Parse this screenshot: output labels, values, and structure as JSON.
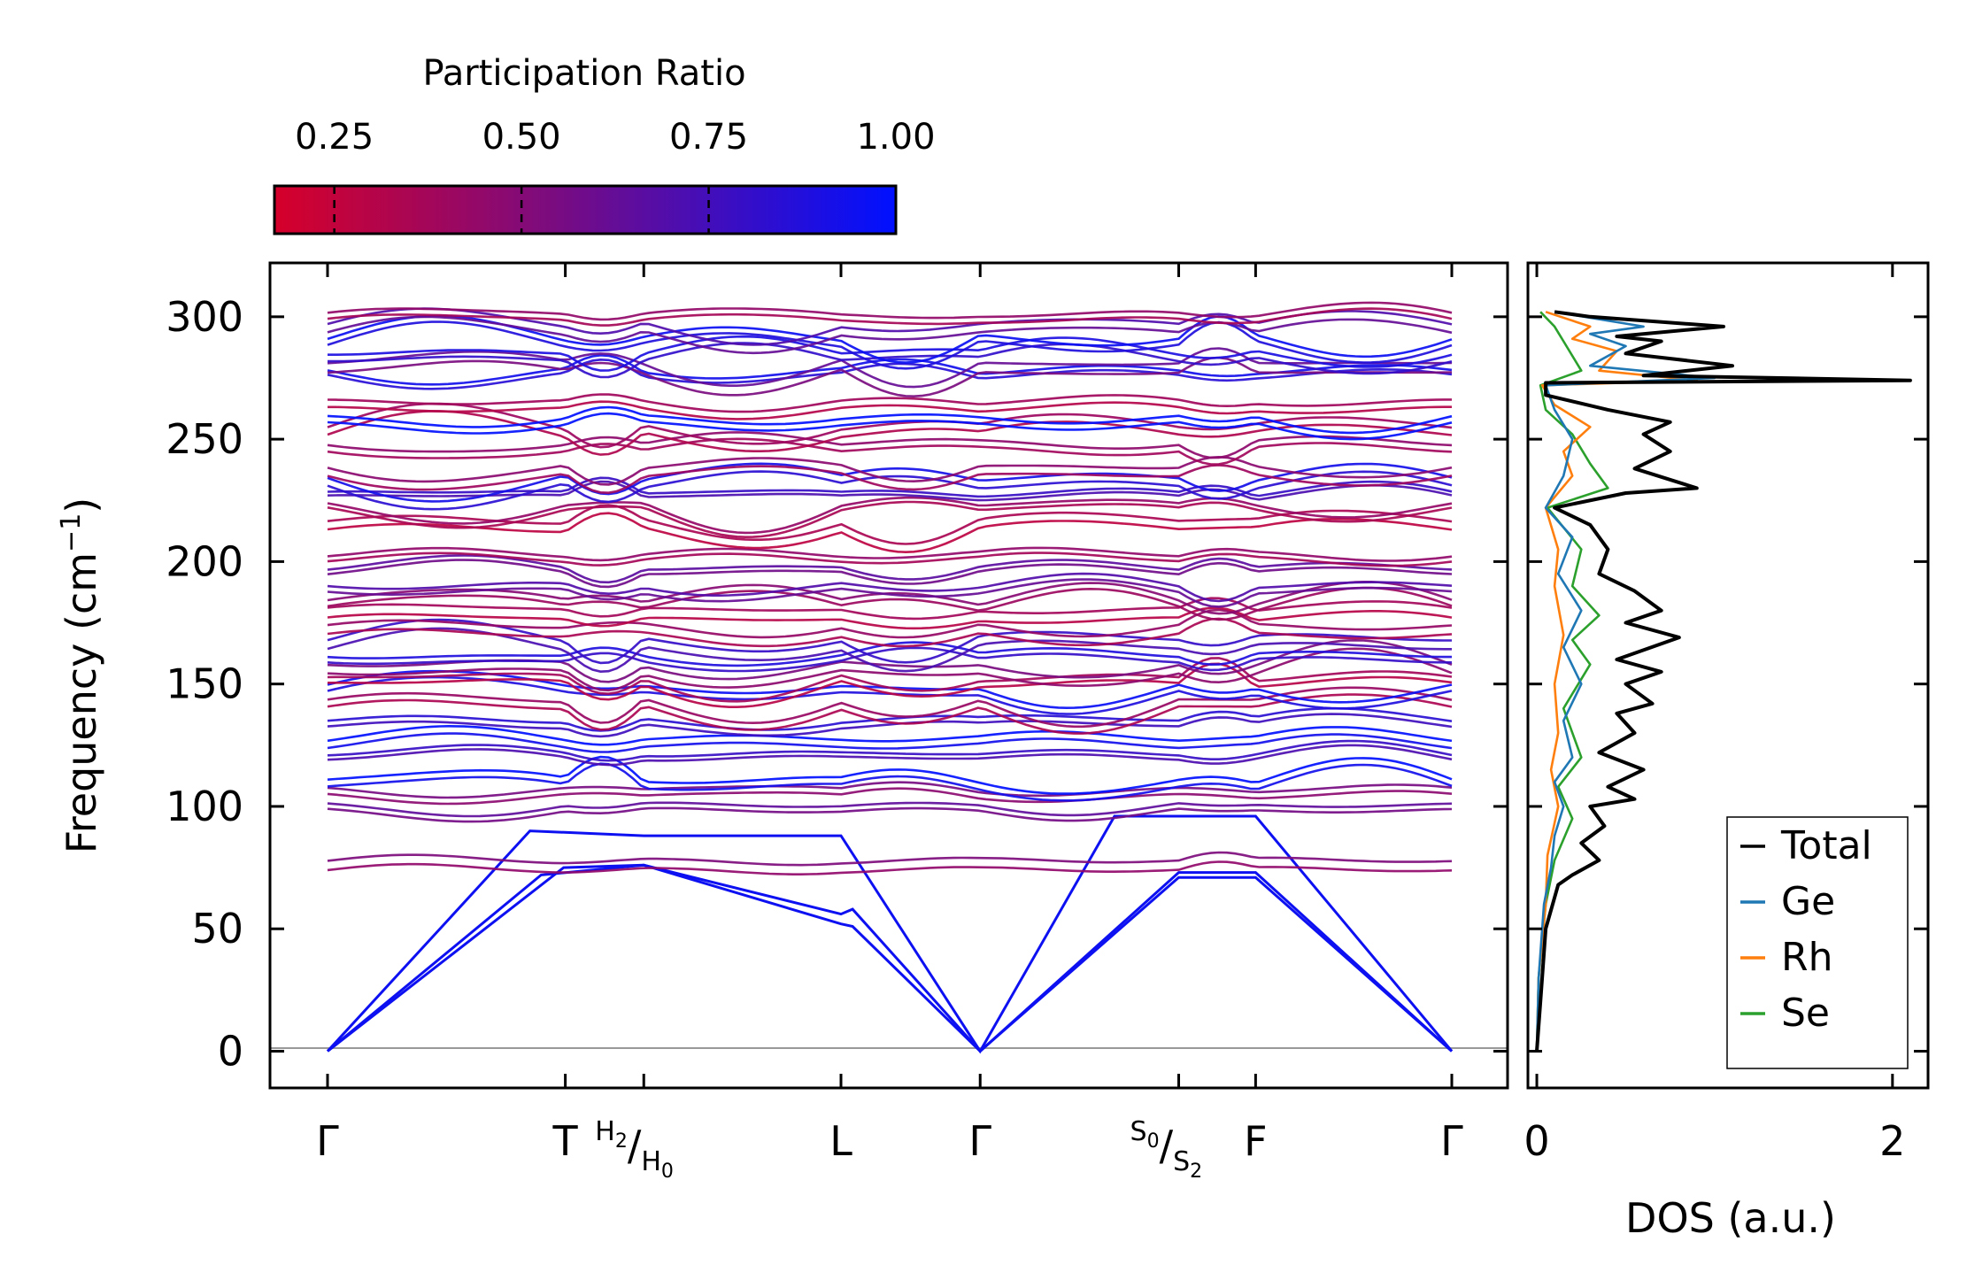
{
  "chart_data": [
    {
      "type": "line",
      "title": "",
      "ylabel": "Frequency (cm⁻¹)",
      "ylabel_text": "Frequency (cm",
      "ylabel_sup": "−1",
      "ylabel_close": ")",
      "ylim": [
        -15,
        322
      ],
      "yticks": [
        0,
        50,
        100,
        150,
        200,
        250,
        300
      ],
      "x_path": [
        {
          "label": "Γ",
          "pos": 0.0
        },
        {
          "label": "T",
          "pos": 0.2115
        },
        {
          "label": "H₂/H₀",
          "pos": 0.2813,
          "label_parts": {
            "a": "H",
            "a_sub": "2",
            "b": "H",
            "b_sub": "0"
          }
        },
        {
          "label": "L",
          "pos": 0.4567
        },
        {
          "label": "Γ",
          "pos": 0.5805
        },
        {
          "label": "S₀/S₂",
          "pos": 0.7571,
          "label_parts": {
            "a": "S",
            "a_sub": "0",
            "b": "S",
            "b_sub": "2"
          }
        },
        {
          "label": "F",
          "pos": 0.8255
        },
        {
          "label": "Γ",
          "pos": 1.0
        }
      ],
      "series_description": "Phonon bands colored by participation ratio",
      "acoustic_bands": [
        {
          "name": "acoustic-1",
          "points": [
            [
              0,
              0
            ],
            [
              0.21,
              75
            ],
            [
              0.2813,
              76
            ],
            [
              0.4567,
              56
            ],
            [
              0.467,
              58
            ],
            [
              0.5805,
              0
            ],
            [
              0.7571,
              73
            ],
            [
              0.8255,
              73
            ],
            [
              1,
              0
            ]
          ]
        },
        {
          "name": "acoustic-2",
          "points": [
            [
              0,
              0
            ],
            [
              0.19,
              72
            ],
            [
              0.2813,
              76
            ],
            [
              0.4567,
              52
            ],
            [
              0.467,
              51
            ],
            [
              0.5805,
              0
            ],
            [
              0.7571,
              71
            ],
            [
              0.8255,
              71
            ],
            [
              1,
              0
            ]
          ]
        },
        {
          "name": "acoustic-3",
          "points": [
            [
              0,
              0
            ],
            [
              0.18,
              90
            ],
            [
              0.2813,
              88
            ],
            [
              0.4567,
              88
            ],
            [
              0.5805,
              0
            ],
            [
              0.7,
              96
            ],
            [
              0.8255,
              96
            ],
            [
              1,
              0
            ]
          ]
        }
      ],
      "optical_band_levels": [
        74,
        98,
        104,
        108,
        120,
        125,
        133,
        140,
        146,
        150,
        155,
        160,
        165,
        170,
        176,
        181,
        188,
        196,
        201,
        213,
        221,
        226,
        231,
        236,
        246,
        252,
        256,
        262,
        276,
        278,
        283,
        289,
        293,
        298
      ],
      "colorbar": {
        "title": "Participation Ratio",
        "ticks": [
          0.25,
          0.5,
          0.75,
          1.0
        ],
        "tick_labels": [
          "0.25",
          "0.50",
          "0.75",
          "1.00"
        ],
        "range": [
          0.17,
          1.0
        ],
        "color_low": "#d6002a",
        "color_mid": "#7a0c80",
        "color_high": "#0010ff"
      }
    },
    {
      "type": "line",
      "xlabel": "DOS (a.u.)",
      "xlim": [
        -0.05,
        2.2
      ],
      "xticks": [
        0,
        2
      ],
      "xtick_labels": [
        "0",
        "2"
      ],
      "ylim": [
        -15,
        322
      ],
      "legend_position": "lower-right",
      "series": [
        {
          "name": "Total",
          "color": "#000000",
          "points": [
            [
              0,
              0
            ],
            [
              0.02,
              20
            ],
            [
              0.05,
              50
            ],
            [
              0.12,
              68
            ],
            [
              0.2,
              72
            ],
            [
              0.35,
              78
            ],
            [
              0.25,
              85
            ],
            [
              0.38,
              92
            ],
            [
              0.3,
              100
            ],
            [
              0.55,
              103
            ],
            [
              0.4,
              108
            ],
            [
              0.6,
              115
            ],
            [
              0.35,
              122
            ],
            [
              0.55,
              130
            ],
            [
              0.45,
              138
            ],
            [
              0.65,
              142
            ],
            [
              0.5,
              150
            ],
            [
              0.7,
              155
            ],
            [
              0.45,
              160
            ],
            [
              0.8,
              169
            ],
            [
              0.5,
              175
            ],
            [
              0.7,
              180
            ],
            [
              0.55,
              188
            ],
            [
              0.35,
              195
            ],
            [
              0.4,
              205
            ],
            [
              0.3,
              215
            ],
            [
              0.1,
              222
            ],
            [
              0.5,
              228
            ],
            [
              0.9,
              230
            ],
            [
              0.55,
              238
            ],
            [
              0.75,
              245
            ],
            [
              0.6,
              252
            ],
            [
              0.75,
              257
            ],
            [
              0.4,
              262
            ],
            [
              0.05,
              268
            ],
            [
              0.05,
              273
            ],
            [
              2.1,
              274
            ],
            [
              0.6,
              276
            ],
            [
              1.1,
              280
            ],
            [
              0.5,
              285
            ],
            [
              0.7,
              290
            ],
            [
              0.45,
              292
            ],
            [
              1.05,
              296
            ],
            [
              0.3,
              300
            ],
            [
              0.1,
              302
            ]
          ]
        },
        {
          "name": "Ge",
          "color": "#1f77b4",
          "points": [
            [
              0,
              0
            ],
            [
              0.01,
              30
            ],
            [
              0.04,
              60
            ],
            [
              0.08,
              75
            ],
            [
              0.1,
              88
            ],
            [
              0.15,
              100
            ],
            [
              0.1,
              110
            ],
            [
              0.2,
              120
            ],
            [
              0.15,
              135
            ],
            [
              0.25,
              150
            ],
            [
              0.15,
              165
            ],
            [
              0.25,
              180
            ],
            [
              0.12,
              195
            ],
            [
              0.2,
              210
            ],
            [
              0.05,
              222
            ],
            [
              0.15,
              235
            ],
            [
              0.2,
              250
            ],
            [
              0.1,
              262
            ],
            [
              0.05,
              272
            ],
            [
              1.0,
              275
            ],
            [
              0.3,
              280
            ],
            [
              0.5,
              288
            ],
            [
              0.3,
              293
            ],
            [
              0.6,
              296
            ],
            [
              0.1,
              302
            ]
          ]
        },
        {
          "name": "Rh",
          "color": "#ff7f0e",
          "points": [
            [
              0,
              0
            ],
            [
              0.01,
              30
            ],
            [
              0.05,
              60
            ],
            [
              0.06,
              80
            ],
            [
              0.12,
              100
            ],
            [
              0.08,
              115
            ],
            [
              0.12,
              130
            ],
            [
              0.1,
              150
            ],
            [
              0.15,
              170
            ],
            [
              0.1,
              190
            ],
            [
              0.12,
              205
            ],
            [
              0.05,
              222
            ],
            [
              0.2,
              235
            ],
            [
              0.15,
              245
            ],
            [
              0.3,
              255
            ],
            [
              0.1,
              264
            ],
            [
              0.03,
              272
            ],
            [
              0.9,
              274
            ],
            [
              0.35,
              278
            ],
            [
              0.45,
              286
            ],
            [
              0.2,
              291
            ],
            [
              0.3,
              296
            ],
            [
              0.05,
              302
            ]
          ]
        },
        {
          "name": "Se",
          "color": "#2ca02c",
          "points": [
            [
              0,
              0
            ],
            [
              0.01,
              30
            ],
            [
              0.05,
              60
            ],
            [
              0.1,
              78
            ],
            [
              0.2,
              95
            ],
            [
              0.12,
              108
            ],
            [
              0.25,
              120
            ],
            [
              0.15,
              140
            ],
            [
              0.3,
              158
            ],
            [
              0.2,
              168
            ],
            [
              0.35,
              178
            ],
            [
              0.2,
              190
            ],
            [
              0.25,
              205
            ],
            [
              0.06,
              222
            ],
            [
              0.4,
              230
            ],
            [
              0.3,
              240
            ],
            [
              0.2,
              252
            ],
            [
              0.05,
              262
            ],
            [
              0.02,
              272
            ],
            [
              0.25,
              278
            ],
            [
              0.15,
              290
            ],
            [
              0.1,
              296
            ],
            [
              0.02,
              302
            ]
          ]
        }
      ]
    }
  ]
}
